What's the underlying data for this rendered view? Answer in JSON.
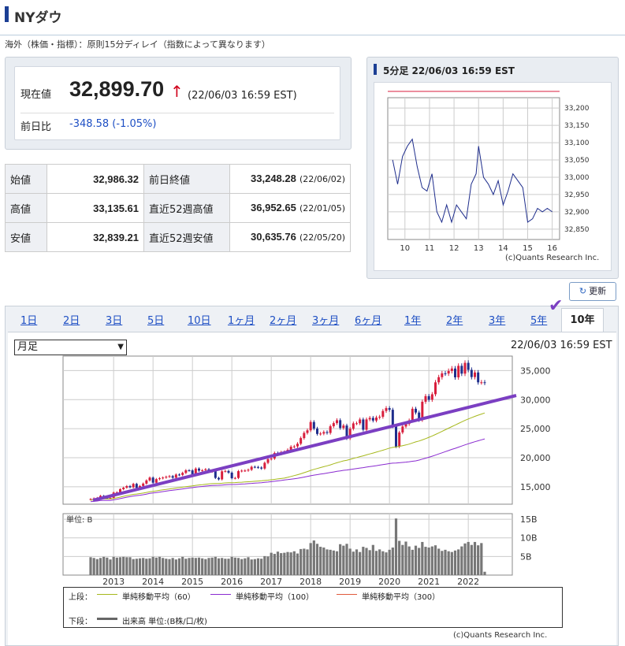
{
  "header": {
    "title": "NYダウ",
    "subtitle": "海外（株価・指標）：原則15分ディレイ（指数によって異なります）"
  },
  "current": {
    "label": "現在値",
    "value": "32,899.70",
    "arrow": "↑",
    "time": "(22/06/03 16:59 EST)",
    "change_label": "前日比",
    "change": "-348.58 (-1.05%)"
  },
  "stats": [
    {
      "l1": "始値",
      "v1": "32,986.32",
      "l2": "前日終値",
      "v2": "33,248.28",
      "d2": "(22/06/02)"
    },
    {
      "l1": "高値",
      "v1": "33,135.61",
      "l2": "直近52週高値",
      "v2": "36,952.65",
      "d2": "(22/01/05)"
    },
    {
      "l1": "安値",
      "v1": "32,839.21",
      "l2": "直近52週安値",
      "v2": "30,635.76",
      "d2": "(22/05/20)"
    }
  ],
  "mini_chart": {
    "title": "5分足 22/06/03 16:59 EST",
    "credit": "(c)Quants Research Inc.",
    "x_ticks": [
      "10",
      "11",
      "12",
      "13",
      "14",
      "15",
      "16"
    ],
    "y_ticks": [
      "33,200",
      "33,150",
      "33,100",
      "33,050",
      "33,000",
      "32,950",
      "32,900",
      "32,850"
    ]
  },
  "refresh_label": "更新",
  "tabs": [
    "1日",
    "2日",
    "3日",
    "5日",
    "10日",
    "1ヶ月",
    "2ヶ月",
    "3ヶ月",
    "6ヶ月",
    "1年",
    "2年",
    "3年",
    "5年",
    "10年"
  ],
  "active_tab": "10年",
  "check_mark": "✔",
  "main_chart": {
    "select_value": "月足",
    "time": "22/06/03 16:59 EST",
    "y_ticks": [
      "35,000",
      "30,000",
      "25,000",
      "20,000",
      "15,000"
    ],
    "x_ticks": [
      "2013",
      "2014",
      "2015",
      "2016",
      "2017",
      "2018",
      "2019",
      "2020",
      "2021",
      "2022"
    ],
    "vol_unit": "単位: B",
    "vol_ticks": [
      "15B",
      "10B",
      "5B"
    ],
    "credit": "(c)Quants Research Inc."
  },
  "legend": {
    "upper": "上段：",
    "ma60": "単純移動平均（60）",
    "ma100": "単純移動平均（100）",
    "ma300": "単純移動平均（300）",
    "lower": "下段：",
    "volume": "出来高 単位:(B株/口/枚)"
  },
  "colors": {
    "up": "#d81e3c",
    "down": "#1e2d8c",
    "ma60": "#a6b81c",
    "ma100": "#8a2bd0",
    "ma300": "#e05a3c",
    "trend": "#7b3fc2"
  },
  "chart_data": [
    {
      "type": "line",
      "title": "5分足 22/06/03 16:59 EST",
      "xlabel": "",
      "ylabel": "",
      "ylim": [
        32820,
        33230
      ],
      "x": [
        9.5,
        9.7,
        9.9,
        10.1,
        10.3,
        10.5,
        10.7,
        10.9,
        11.1,
        11.3,
        11.5,
        11.7,
        11.9,
        12.1,
        12.3,
        12.5,
        12.7,
        12.9,
        13.0,
        13.2,
        13.4,
        13.6,
        13.8,
        14.0,
        14.2,
        14.4,
        14.6,
        14.8,
        15.0,
        15.2,
        15.4,
        15.6,
        15.8,
        16.0
      ],
      "series": [
        {
          "values": [
            33050,
            32980,
            33060,
            33090,
            33110,
            33030,
            32970,
            32960,
            33010,
            32900,
            32870,
            32920,
            32870,
            32920,
            32900,
            32880,
            32980,
            33010,
            33090,
            33000,
            32980,
            32950,
            32990,
            32920,
            32960,
            33010,
            32990,
            32970,
            32870,
            32880,
            32910,
            32900,
            32910,
            32900
          ]
        }
      ],
      "reference_line": 33248.28
    },
    {
      "type": "candlestick",
      "title": "月足",
      "xlabel": "",
      "ylabel": "",
      "ylim": [
        12000,
        37500
      ],
      "x": [
        "2012-06",
        "2012-07",
        "2012-08",
        "2012-09",
        "2012-10",
        "2012-11",
        "2012-12",
        "2013-01",
        "2013-02",
        "2013-03",
        "2013-04",
        "2013-05",
        "2013-06",
        "2013-07",
        "2013-08",
        "2013-09",
        "2013-10",
        "2013-11",
        "2013-12",
        "2014-01",
        "2014-02",
        "2014-03",
        "2014-04",
        "2014-05",
        "2014-06",
        "2014-07",
        "2014-08",
        "2014-09",
        "2014-10",
        "2014-11",
        "2014-12",
        "2015-01",
        "2015-02",
        "2015-03",
        "2015-04",
        "2015-05",
        "2015-06",
        "2015-07",
        "2015-08",
        "2015-09",
        "2015-10",
        "2015-11",
        "2015-12",
        "2016-01",
        "2016-02",
        "2016-03",
        "2016-04",
        "2016-05",
        "2016-06",
        "2016-07",
        "2016-08",
        "2016-09",
        "2016-10",
        "2016-11",
        "2016-12",
        "2017-01",
        "2017-02",
        "2017-03",
        "2017-04",
        "2017-05",
        "2017-06",
        "2017-07",
        "2017-08",
        "2017-09",
        "2017-10",
        "2017-11",
        "2017-12",
        "2018-01",
        "2018-02",
        "2018-03",
        "2018-04",
        "2018-05",
        "2018-06",
        "2018-07",
        "2018-08",
        "2018-09",
        "2018-10",
        "2018-11",
        "2018-12",
        "2019-01",
        "2019-02",
        "2019-03",
        "2019-04",
        "2019-05",
        "2019-06",
        "2019-07",
        "2019-08",
        "2019-09",
        "2019-10",
        "2019-11",
        "2019-12",
        "2020-01",
        "2020-02",
        "2020-03",
        "2020-04",
        "2020-05",
        "2020-06",
        "2020-07",
        "2020-08",
        "2020-09",
        "2020-10",
        "2020-11",
        "2020-12",
        "2021-01",
        "2021-02",
        "2021-03",
        "2021-04",
        "2021-05",
        "2021-06",
        "2021-07",
        "2021-08",
        "2021-09",
        "2021-10",
        "2021-11",
        "2021-12",
        "2022-01",
        "2022-02",
        "2022-03",
        "2022-04",
        "2022-05",
        "2022-06"
      ],
      "close": [
        12880,
        13010,
        13090,
        13440,
        13100,
        13030,
        13100,
        14000,
        14050,
        14580,
        14840,
        15120,
        14910,
        15500,
        14810,
        15130,
        15550,
        16090,
        16580,
        15700,
        16320,
        16460,
        16580,
        16720,
        16830,
        16560,
        17100,
        17040,
        17390,
        17830,
        17820,
        17160,
        18130,
        17780,
        17840,
        18010,
        17620,
        17690,
        16530,
        16280,
        17660,
        17720,
        17430,
        16470,
        16520,
        17690,
        17770,
        17790,
        17930,
        18430,
        18400,
        18310,
        18140,
        19120,
        19760,
        19860,
        20810,
        20660,
        20940,
        21010,
        21350,
        21890,
        21950,
        22410,
        23380,
        24270,
        24720,
        26150,
        25030,
        24100,
        24160,
        24420,
        24270,
        25420,
        25960,
        26460,
        25120,
        25540,
        23330,
        24990,
        25920,
        25930,
        26590,
        24820,
        26600,
        26860,
        26400,
        26920,
        27050,
        28050,
        28540,
        28260,
        25410,
        21920,
        24350,
        25380,
        25810,
        26430,
        28430,
        27780,
        26500,
        29640,
        30610,
        29980,
        30930,
        32980,
        33870,
        34530,
        34500,
        34940,
        35360,
        33840,
        35820,
        34480,
        36340,
        35130,
        33890,
        34680,
        32980,
        32990,
        32900
      ],
      "vol_note": "monthly volume bars, billions",
      "volume": [
        4.8,
        4.6,
        4.3,
        4.6,
        4.9,
        4.7,
        4.2,
        4.9,
        4.7,
        4.8,
        4.9,
        4.8,
        4.8,
        4.3,
        4.4,
        4.5,
        4.6,
        4.4,
        4.5,
        4.9,
        4.7,
        4.9,
        4.6,
        4.4,
        4.3,
        4.6,
        4.2,
        4.5,
        4.9,
        4.4,
        4.6,
        4.7,
        4.6,
        4.7,
        4.5,
        4.3,
        4.6,
        4.7,
        4.9,
        4.5,
        4.6,
        4.4,
        4.4,
        4.9,
        4.7,
        4.6,
        4.3,
        4.5,
        4.8,
        4.2,
        4.3,
        4.5,
        4.4,
        5.1,
        5.0,
        6.0,
        5.7,
        6.3,
        5.9,
        6.0,
        6.2,
        6.1,
        6.4,
        5.8,
        7.0,
        7.1,
        6.9,
        8.6,
        9.3,
        8.4,
        7.6,
        7.4,
        6.9,
        6.8,
        6.6,
        6.4,
        8.3,
        7.9,
        8.4,
        7.1,
        6.3,
        6.9,
        6.2,
        7.6,
        7.3,
        6.7,
        8.1,
        6.5,
        6.9,
        6.4,
        6.1,
        6.8,
        7.4,
        15.2,
        9.2,
        8.1,
        9.0,
        7.7,
        6.8,
        7.9,
        7.3,
        8.9,
        7.6,
        7.4,
        7.7,
        8.0,
        7.1,
        6.5,
        6.8,
        6.4,
        6.2,
        6.6,
        6.9,
        7.7,
        8.5,
        8.9,
        8.1,
        8.9,
        8.0,
        8.6,
        0.9
      ]
    }
  ]
}
